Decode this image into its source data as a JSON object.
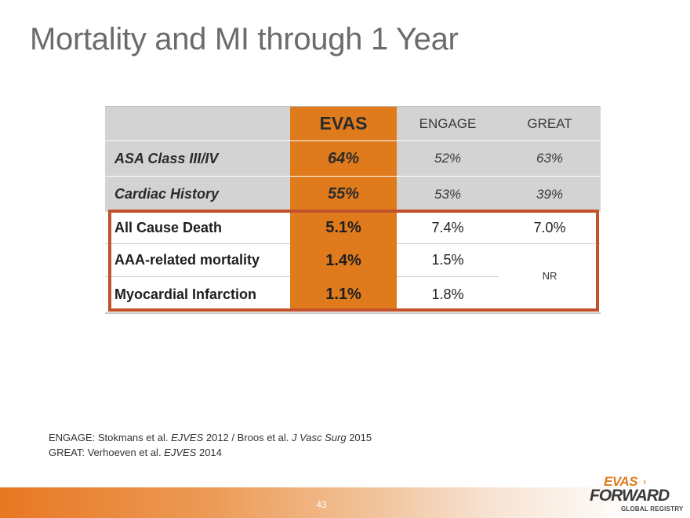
{
  "slide": {
    "title": "Mortality and MI through 1 Year",
    "page_number": "43"
  },
  "table": {
    "headers": {
      "label": "",
      "evas": "EVAS",
      "engage": "ENGAGE",
      "great": "GREAT"
    },
    "baseline_rows": [
      {
        "label": "ASA Class III/IV",
        "evas": "64%",
        "engage": "52%",
        "great": "63%"
      },
      {
        "label": "Cardiac History",
        "evas": "55%",
        "engage": "53%",
        "great": "39%"
      }
    ],
    "outcome_rows": [
      {
        "label": "All Cause Death",
        "evas": "5.1%",
        "engage": "7.4%",
        "great": "7.0%"
      },
      {
        "label": "AAA-related mortality",
        "evas": "1.4%",
        "engage": "1.5%"
      },
      {
        "label": "Myocardial Infarction",
        "evas": "1.1%",
        "engage": "1.8%"
      }
    ],
    "great_merged_value": "NR"
  },
  "references": {
    "line1": {
      "prefix": "ENGAGE: Stokmans et al. ",
      "journal1": "EJVES",
      "mid": " 2012 / Broos et al. ",
      "journal2": "J Vasc Surg",
      "suffix": " 2015"
    },
    "line2": {
      "prefix": "GREAT: Verhoeven et al. ",
      "journal": "EJVES",
      "suffix": " 2014"
    }
  },
  "logo": {
    "evas": "EVAS",
    "arrow": "›",
    "forward": "FORWARD",
    "global": "GLOBAL REGISTRY"
  },
  "colors": {
    "accent_orange": "#e07b1d",
    "highlight_border": "#c0512a",
    "header_gray": "#d3d3d3"
  }
}
